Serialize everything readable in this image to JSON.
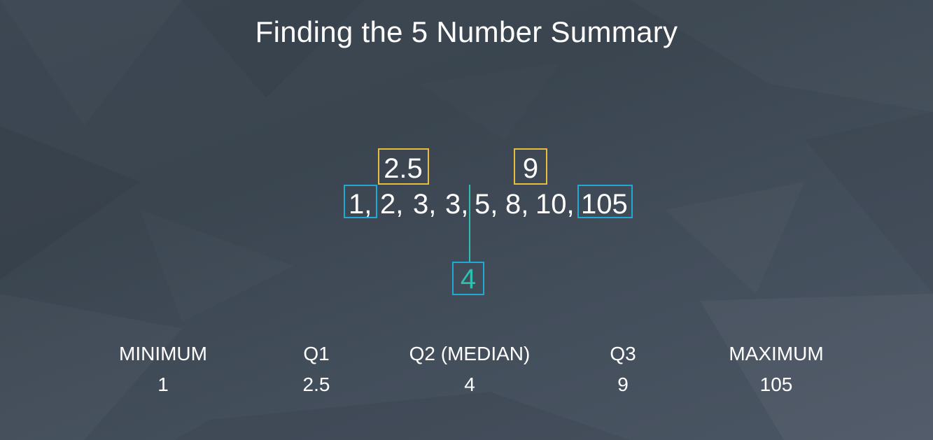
{
  "title": "Finding the 5 Number Summary",
  "dataset": {
    "tokens": [
      "1,",
      "2,",
      "3,",
      "3,",
      "5,",
      "8,",
      "10,",
      "105"
    ]
  },
  "annotations": {
    "q1_box": "2.5",
    "q3_box": "9",
    "median_box": "4"
  },
  "summary": [
    {
      "label": "MINIMUM",
      "value": "1"
    },
    {
      "label": "Q1",
      "value": "2.5"
    },
    {
      "label": "Q2 (MEDIAN)",
      "value": "4"
    },
    {
      "label": "Q3",
      "value": "9"
    },
    {
      "label": "MAXIMUM",
      "value": "105"
    }
  ],
  "colors": {
    "yellow_box": "#e8bc3c",
    "blue_box": "#1fa9d6",
    "teal": "#2bc0b0",
    "text": "#ffffff"
  }
}
